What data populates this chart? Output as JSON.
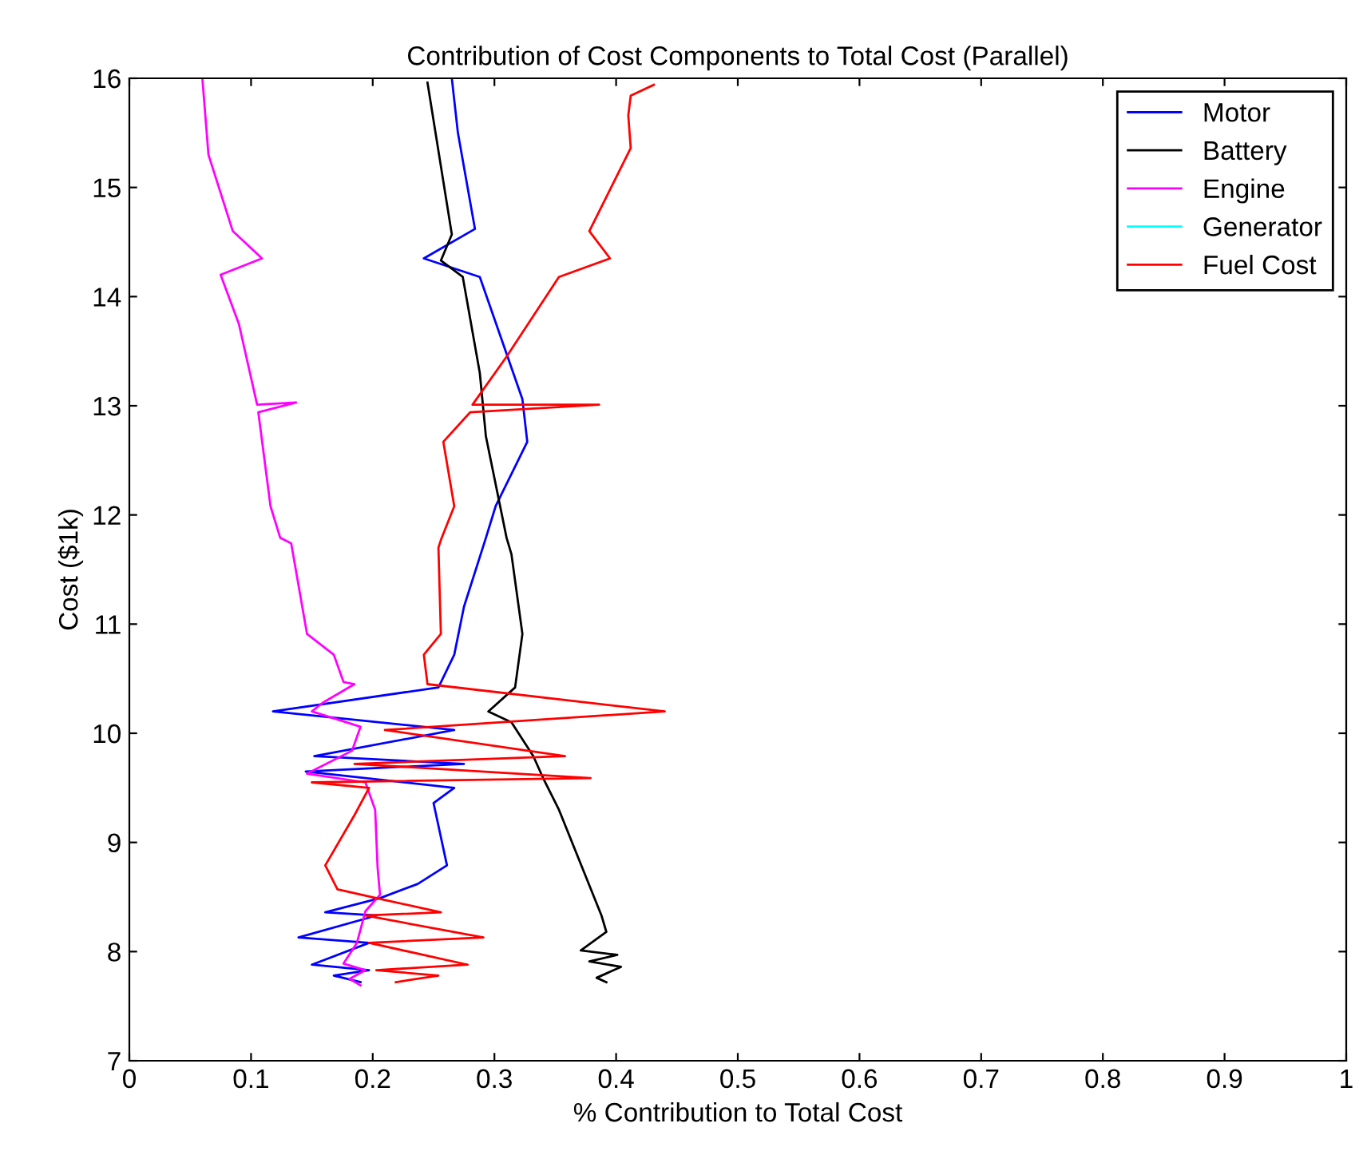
{
  "chart_data": {
    "type": "line",
    "title": "Contribution of Cost Components to Total Cost (Parallel)",
    "xlabel": "% Contribution to Total Cost",
    "ylabel": "Cost ($1k)",
    "xlim": [
      0,
      1
    ],
    "ylim": [
      7,
      16
    ],
    "xticks": [
      0,
      0.1,
      0.2,
      0.3,
      0.4,
      0.5,
      0.6,
      0.7,
      0.8,
      0.9,
      1
    ],
    "yticks": [
      7,
      8,
      9,
      10,
      11,
      12,
      13,
      14,
      15,
      16
    ],
    "grid": false,
    "legend": "top right",
    "line_style": "solid",
    "series": [
      {
        "name": "Motor",
        "color": "#0000ff",
        "x": [
          0.265,
          0.27,
          0.284,
          0.242,
          0.288,
          0.323,
          0.327,
          0.301,
          0.293,
          0.275,
          0.267,
          0.254,
          0.118,
          0.267,
          0.152,
          0.275,
          0.145,
          0.267,
          0.25,
          0.261,
          0.237,
          0.206,
          0.161,
          0.203,
          0.139,
          0.197,
          0.15,
          0.197,
          0.168,
          0.19
        ],
        "values": [
          16,
          15.5,
          14.62,
          14.35,
          14.18,
          13.06,
          12.67,
          12.08,
          11.79,
          11.16,
          10.72,
          10.42,
          10.2,
          10.03,
          9.79,
          9.72,
          9.65,
          9.5,
          9.36,
          8.79,
          8.62,
          8.49,
          8.36,
          8.33,
          8.13,
          8.08,
          7.88,
          7.83,
          7.78,
          7.72
        ]
      },
      {
        "name": "Battery",
        "color": "#000000",
        "x": [
          0.245,
          0.265,
          0.256,
          0.274,
          0.288,
          0.293,
          0.31,
          0.314,
          0.323,
          0.317,
          0.295,
          0.314,
          0.332,
          0.34,
          0.353,
          0.388,
          0.392,
          0.371,
          0.401,
          0.378,
          0.404,
          0.384,
          0.392
        ],
        "values": [
          15.96,
          14.57,
          14.33,
          14.18,
          13.3,
          12.72,
          11.79,
          11.64,
          10.91,
          10.42,
          10.2,
          10.1,
          9.79,
          9.59,
          9.3,
          8.33,
          8.18,
          8.01,
          7.97,
          7.91,
          7.86,
          7.76,
          7.72
        ]
      },
      {
        "name": "Engine",
        "color": "#ff00ff",
        "x": [
          0.06,
          0.065,
          0.085,
          0.109,
          0.075,
          0.09,
          0.105,
          0.137,
          0.106,
          0.116,
          0.124,
          0.133,
          0.146,
          0.168,
          0.176,
          0.185,
          0.159,
          0.15,
          0.19,
          0.183,
          0.146,
          0.194,
          0.202,
          0.204,
          0.206,
          0.194,
          0.187,
          0.176,
          0.194,
          0.181,
          0.19
        ],
        "values": [
          16,
          15.3,
          14.6,
          14.35,
          14.2,
          13.75,
          13.01,
          13.03,
          12.94,
          12.08,
          11.79,
          11.74,
          10.91,
          10.72,
          10.47,
          10.45,
          10.28,
          10.2,
          10.06,
          9.84,
          9.63,
          9.55,
          9.3,
          8.77,
          8.52,
          8.37,
          8.08,
          7.89,
          7.83,
          7.75,
          7.69
        ]
      },
      {
        "name": "Generator",
        "color": "#00ffff"
      },
      {
        "name": "Fuel Cost",
        "color": "#ff0000",
        "x": [
          0.431,
          0.412,
          0.41,
          0.412,
          0.378,
          0.395,
          0.353,
          0.31,
          0.282,
          0.386,
          0.28,
          0.258,
          0.267,
          0.256,
          0.254,
          0.256,
          0.242,
          0.245,
          0.44,
          0.21,
          0.358,
          0.185,
          0.379,
          0.15,
          0.197,
          0.185,
          0.161,
          0.171,
          0.203,
          0.256,
          0.194,
          0.291,
          0.197,
          0.278,
          0.203,
          0.254,
          0.219
        ],
        "values": [
          15.94,
          15.84,
          15.66,
          15.36,
          14.6,
          14.35,
          14.18,
          13.45,
          13.01,
          13.01,
          12.94,
          12.67,
          12.08,
          11.77,
          11.7,
          10.91,
          10.72,
          10.45,
          10.2,
          10.03,
          9.79,
          9.72,
          9.59,
          9.55,
          9.5,
          9.25,
          8.79,
          8.57,
          8.49,
          8.36,
          8.33,
          8.13,
          8.08,
          7.88,
          7.83,
          7.78,
          7.72
        ]
      }
    ]
  }
}
